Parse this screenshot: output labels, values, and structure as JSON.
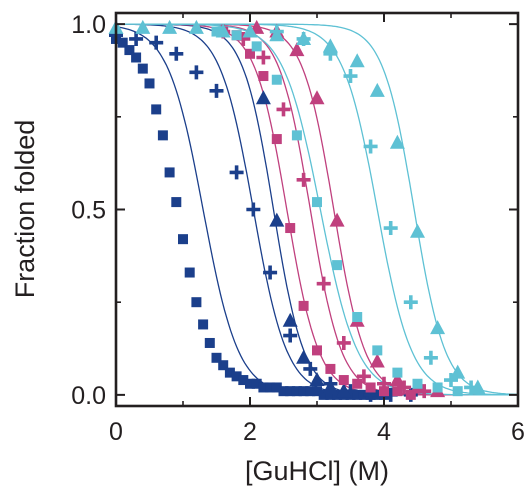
{
  "chart_data": {
    "type": "scatter",
    "xlabel": "[GuHCl] (M)",
    "ylabel": "Fraction folded",
    "xlim": [
      0,
      6
    ],
    "ylim": [
      -0.03,
      1.03
    ],
    "x_ticks": [
      0,
      2,
      4,
      6
    ],
    "x_tick_labels": [
      "0",
      "2",
      "4",
      "6"
    ],
    "y_ticks": [
      0.0,
      0.5,
      1.0
    ],
    "y_tick_labels": [
      "0.0",
      "0.5",
      "1.0"
    ],
    "grid": false,
    "legend": "none",
    "series": [
      {
        "marker": "square",
        "color": "#1b3f8b",
        "midpoint": 1.3,
        "m": 3.8,
        "x": [
          0.0,
          0.1,
          0.2,
          0.3,
          0.4,
          0.5,
          0.6,
          0.7,
          0.8,
          0.9,
          1.0,
          1.1,
          1.2,
          1.3,
          1.4,
          1.5,
          1.6,
          1.7,
          1.8,
          1.9,
          2.0,
          2.1,
          2.2,
          2.3,
          2.4,
          2.5,
          2.6,
          2.7,
          2.8,
          2.9,
          3.0,
          3.1,
          3.2,
          3.3,
          3.4,
          3.5,
          3.6,
          3.7,
          3.8,
          3.9,
          4.0
        ],
        "y": [
          0.96,
          0.95,
          0.93,
          0.91,
          0.88,
          0.84,
          0.77,
          0.7,
          0.6,
          0.52,
          0.42,
          0.33,
          0.25,
          0.19,
          0.14,
          0.1,
          0.08,
          0.06,
          0.05,
          0.04,
          0.03,
          0.03,
          0.02,
          0.02,
          0.02,
          0.01,
          0.01,
          0.01,
          0.01,
          0.01,
          0.01,
          0.0,
          0.0,
          0.0,
          0.0,
          0.0,
          0.0,
          0.0,
          0.0,
          0.0,
          0.0
        ]
      },
      {
        "marker": "plus",
        "color": "#1b3f8b",
        "midpoint": 2.05,
        "m": 4.0,
        "x": [
          0.0,
          0.3,
          0.6,
          0.9,
          1.2,
          1.5,
          1.8,
          2.05,
          2.3,
          2.6,
          2.9,
          3.2,
          3.5,
          3.8,
          4.1,
          4.4
        ],
        "y": [
          0.97,
          0.96,
          0.95,
          0.92,
          0.87,
          0.82,
          0.6,
          0.5,
          0.33,
          0.16,
          0.07,
          0.03,
          0.01,
          0.0,
          0.0,
          0.0
        ]
      },
      {
        "marker": "triangle",
        "color": "#1b3f8b",
        "midpoint": 2.35,
        "m": 4.4,
        "x": [
          2.2,
          2.4,
          2.6,
          2.8,
          3.0,
          3.2,
          3.4
        ],
        "y": [
          0.8,
          0.47,
          0.2,
          0.1,
          0.04,
          0.02,
          0.01
        ]
      },
      {
        "marker": "square",
        "color": "#c0407e",
        "midpoint": 2.55,
        "m": 4.2,
        "x": [
          1.6,
          1.8,
          2.0,
          2.2,
          2.4,
          2.6,
          2.8,
          3.0,
          3.2,
          3.4,
          3.6,
          3.8,
          4.0,
          4.2,
          4.4
        ],
        "y": [
          0.98,
          0.97,
          0.92,
          0.86,
          0.69,
          0.45,
          0.24,
          0.12,
          0.07,
          0.04,
          0.03,
          0.02,
          0.01,
          0.01,
          0.0
        ]
      },
      {
        "marker": "plus",
        "color": "#c0407e",
        "midpoint": 2.9,
        "m": 4.3,
        "x": [
          1.6,
          1.9,
          2.2,
          2.5,
          2.8,
          3.1,
          3.4,
          3.7,
          4.0,
          4.3,
          4.6
        ],
        "y": [
          0.98,
          0.96,
          0.91,
          0.77,
          0.58,
          0.3,
          0.14,
          0.05,
          0.03,
          0.02,
          0.01
        ]
      },
      {
        "marker": "triangle",
        "color": "#c0407e",
        "midpoint": 3.25,
        "m": 4.3,
        "x": [
          2.1,
          2.4,
          2.7,
          3.0,
          3.3,
          3.6,
          3.9,
          4.2,
          4.5,
          4.8
        ],
        "y": [
          0.99,
          0.98,
          0.93,
          0.8,
          0.47,
          0.2,
          0.09,
          0.04,
          0.02,
          0.01
        ]
      },
      {
        "marker": "square",
        "color": "#5ec1d4",
        "midpoint": 3.05,
        "m": 3.6,
        "x": [
          1.5,
          1.8,
          2.1,
          2.4,
          2.7,
          3.0,
          3.3,
          3.6,
          3.9,
          4.2,
          4.5,
          4.8,
          5.1
        ],
        "y": [
          0.98,
          0.97,
          0.94,
          0.85,
          0.7,
          0.52,
          0.35,
          0.21,
          0.12,
          0.06,
          0.03,
          0.02,
          0.01
        ]
      },
      {
        "marker": "plus",
        "color": "#5ec1d4",
        "midpoint": 3.9,
        "m": 3.9,
        "x": [
          2.4,
          2.8,
          3.2,
          3.5,
          3.8,
          4.1,
          4.4,
          4.7,
          5.0,
          5.3
        ],
        "y": [
          0.98,
          0.96,
          0.92,
          0.86,
          0.67,
          0.45,
          0.25,
          0.1,
          0.04,
          0.02
        ]
      },
      {
        "marker": "triangle",
        "color": "#5ec1d4",
        "midpoint": 4.45,
        "m": 4.3,
        "x": [
          0.0,
          0.4,
          0.8,
          1.2,
          1.6,
          2.0,
          2.4,
          2.8,
          3.2,
          3.6,
          3.9,
          4.2,
          4.5,
          4.8,
          5.1,
          5.4
        ],
        "y": [
          0.99,
          0.99,
          0.99,
          0.99,
          0.98,
          0.98,
          0.97,
          0.96,
          0.94,
          0.9,
          0.82,
          0.68,
          0.44,
          0.18,
          0.06,
          0.02
        ]
      }
    ]
  }
}
